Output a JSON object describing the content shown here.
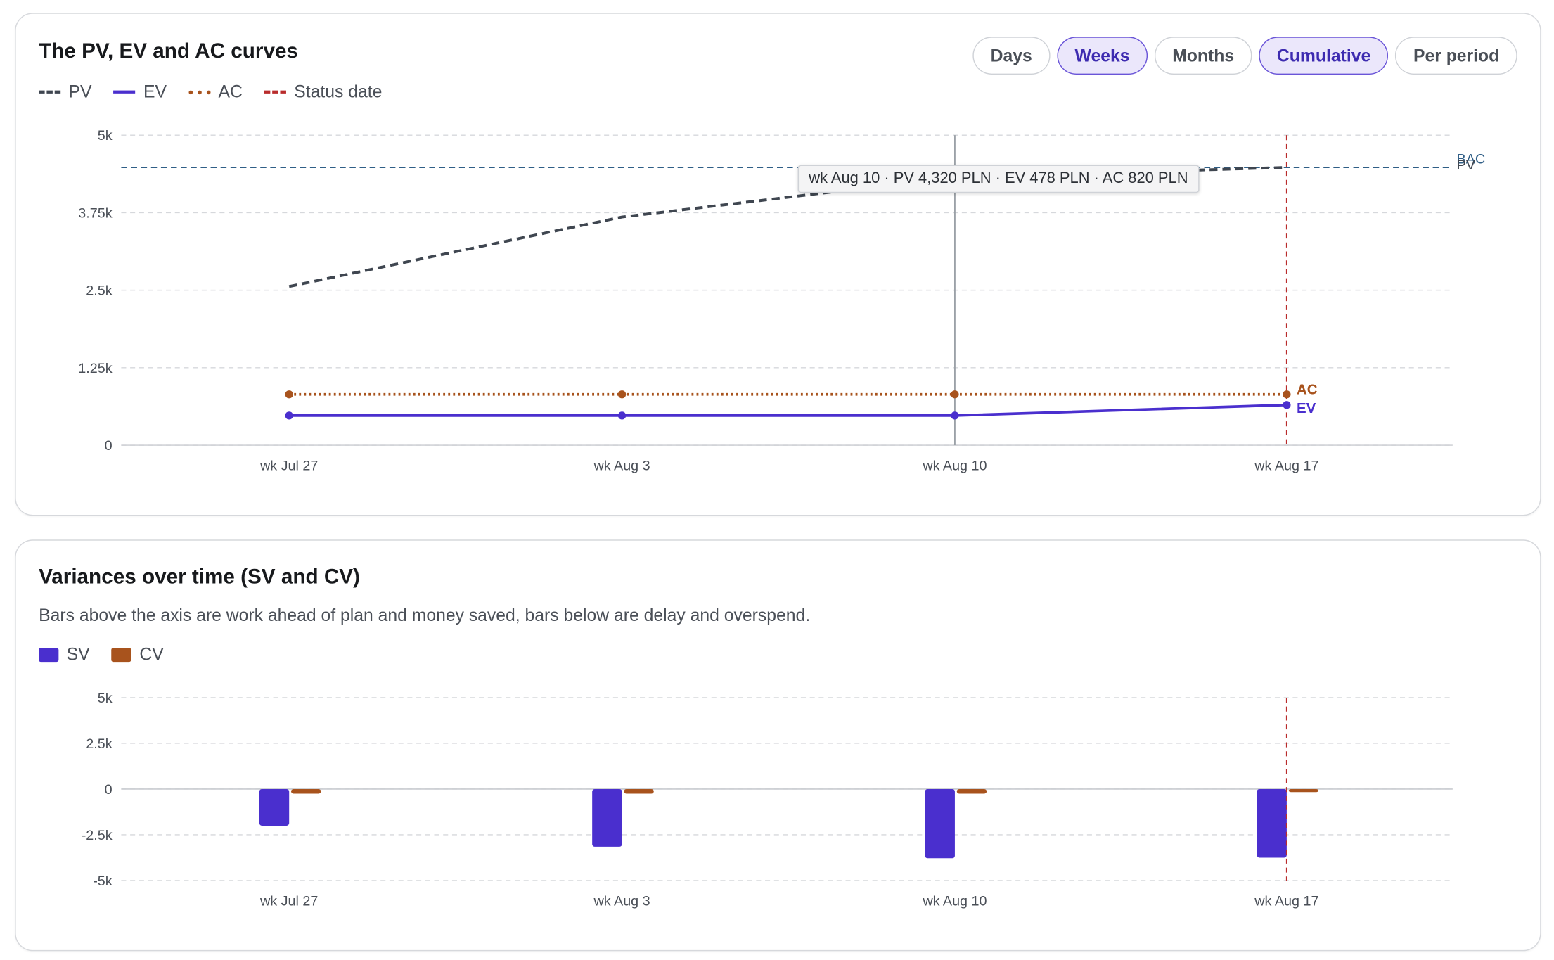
{
  "toolbar": {
    "buttons": [
      {
        "label": "Days",
        "active": false
      },
      {
        "label": "Weeks",
        "active": true
      },
      {
        "label": "Months",
        "active": false
      },
      {
        "label": "Cumulative",
        "active": true
      },
      {
        "label": "Per period",
        "active": false
      }
    ]
  },
  "colors": {
    "pv": "#3f4650",
    "ev": "#4a2fce",
    "ac": "#a8531d",
    "status_date": "#b92c2c",
    "bac": "#2f5e86",
    "hover_line": "#9aa0a6",
    "sv": "#4a2fce",
    "cv": "#a8531d"
  },
  "chart_data": [
    {
      "type": "line",
      "title": "The PV, EV and AC curves",
      "legend": [
        "PV",
        "EV",
        "AC",
        "Status date"
      ],
      "legend_position": "top-left",
      "categories": [
        "wk Jul 27",
        "wk Aug 3",
        "wk Aug 10",
        "wk Aug 17"
      ],
      "y_ticks": [
        "0",
        "1.25k",
        "2.5k",
        "3.75k",
        "5k"
      ],
      "ylim": [
        0,
        5000
      ],
      "grid": true,
      "series": [
        {
          "name": "PV",
          "values": [
            2560,
            3680,
            4320,
            4480
          ],
          "style": "dashed"
        },
        {
          "name": "EV",
          "values": [
            478,
            478,
            478,
            650
          ],
          "style": "solid",
          "end_label": "EV"
        },
        {
          "name": "AC",
          "values": [
            820,
            820,
            820,
            820
          ],
          "style": "dotted",
          "end_label": "AC"
        }
      ],
      "reference_lines": {
        "bac": {
          "label": "BAC",
          "value": 4480
        },
        "status_date_category": "wk Aug 17",
        "pv_end_label": "PV"
      },
      "hover": {
        "category": "wk Aug 10",
        "tooltip": "wk Aug 10 · PV 4,320 PLN · EV 478 PLN · AC 820 PLN"
      }
    },
    {
      "type": "bar",
      "title": "Variances over time (SV and CV)",
      "subtitle": "Bars above the axis are work ahead of plan and money saved, bars below are delay and overspend.",
      "legend": [
        "SV",
        "CV"
      ],
      "legend_position": "top-left",
      "categories": [
        "wk Jul 27",
        "wk Aug 3",
        "wk Aug 10",
        "wk Aug 17"
      ],
      "y_ticks": [
        "-5k",
        "-2.5k",
        "0",
        "2.5k",
        "5k"
      ],
      "ylim": [
        -5000,
        5000
      ],
      "grid": true,
      "series": [
        {
          "name": "SV",
          "values": [
            -2000,
            -3150,
            -3780,
            -3750
          ]
        },
        {
          "name": "CV",
          "values": [
            -250,
            -250,
            -250,
            -100
          ]
        }
      ],
      "status_date_category": "wk Aug 17"
    }
  ]
}
